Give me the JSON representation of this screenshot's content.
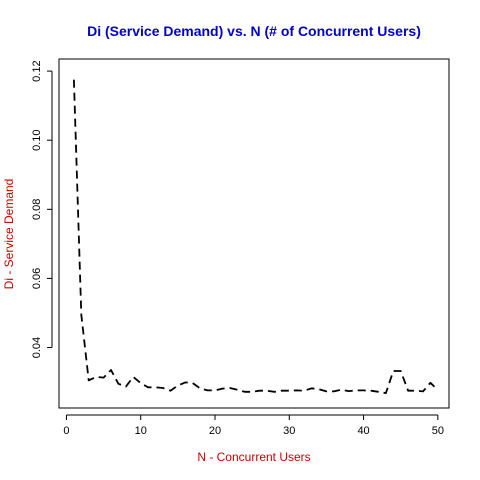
{
  "chart_data": {
    "type": "line",
    "title": "Di (Service Demand) vs. N (# of Concurrent Users)",
    "xlabel": "N - Concurrent Users",
    "ylabel": "Di - Service Demand",
    "xlim": [
      -1,
      51.5
    ],
    "ylim": [
      0.0225,
      0.1235
    ],
    "x_ticks": [
      0,
      10,
      20,
      30,
      40,
      50
    ],
    "x_tick_labels": [
      "0",
      "10",
      "20",
      "30",
      "40",
      "50"
    ],
    "y_ticks": [
      0.04,
      0.06,
      0.08,
      0.1,
      0.12
    ],
    "y_tick_labels": [
      "0.04",
      "0.06",
      "0.08",
      "0.10",
      "0.12"
    ],
    "line_style": "dashed",
    "grid": false,
    "legend": "none",
    "series": [
      {
        "x": [
          1,
          2,
          3,
          4,
          5,
          6,
          7,
          8,
          9,
          10,
          11,
          12,
          13,
          14,
          15,
          16,
          17,
          18,
          19,
          20,
          21,
          22,
          23,
          24,
          25,
          26,
          27,
          28,
          29,
          30,
          31,
          32,
          33,
          34,
          35,
          36,
          37,
          38,
          39,
          40,
          41,
          42,
          43,
          44,
          45,
          46,
          47,
          48,
          49,
          50
        ],
        "values": [
          0.1175,
          0.0495,
          0.0305,
          0.0315,
          0.0313,
          0.0335,
          0.0295,
          0.0287,
          0.0315,
          0.0297,
          0.0285,
          0.0285,
          0.0283,
          0.0275,
          0.029,
          0.0299,
          0.0297,
          0.0282,
          0.0276,
          0.0276,
          0.0281,
          0.0283,
          0.0278,
          0.0272,
          0.0272,
          0.0275,
          0.0275,
          0.0272,
          0.0275,
          0.0275,
          0.0276,
          0.0275,
          0.0282,
          0.0279,
          0.0273,
          0.0273,
          0.0278,
          0.0274,
          0.0276,
          0.0276,
          0.0275,
          0.0272,
          0.0268,
          0.0332,
          0.0332,
          0.0275,
          0.0275,
          0.0273,
          0.0298,
          0.0277
        ]
      }
    ]
  },
  "colors": {
    "title": "#0000cc",
    "axis_labels": "#cc0000",
    "line": "#000000",
    "frame": "#000000",
    "background": "#ffffff"
  }
}
